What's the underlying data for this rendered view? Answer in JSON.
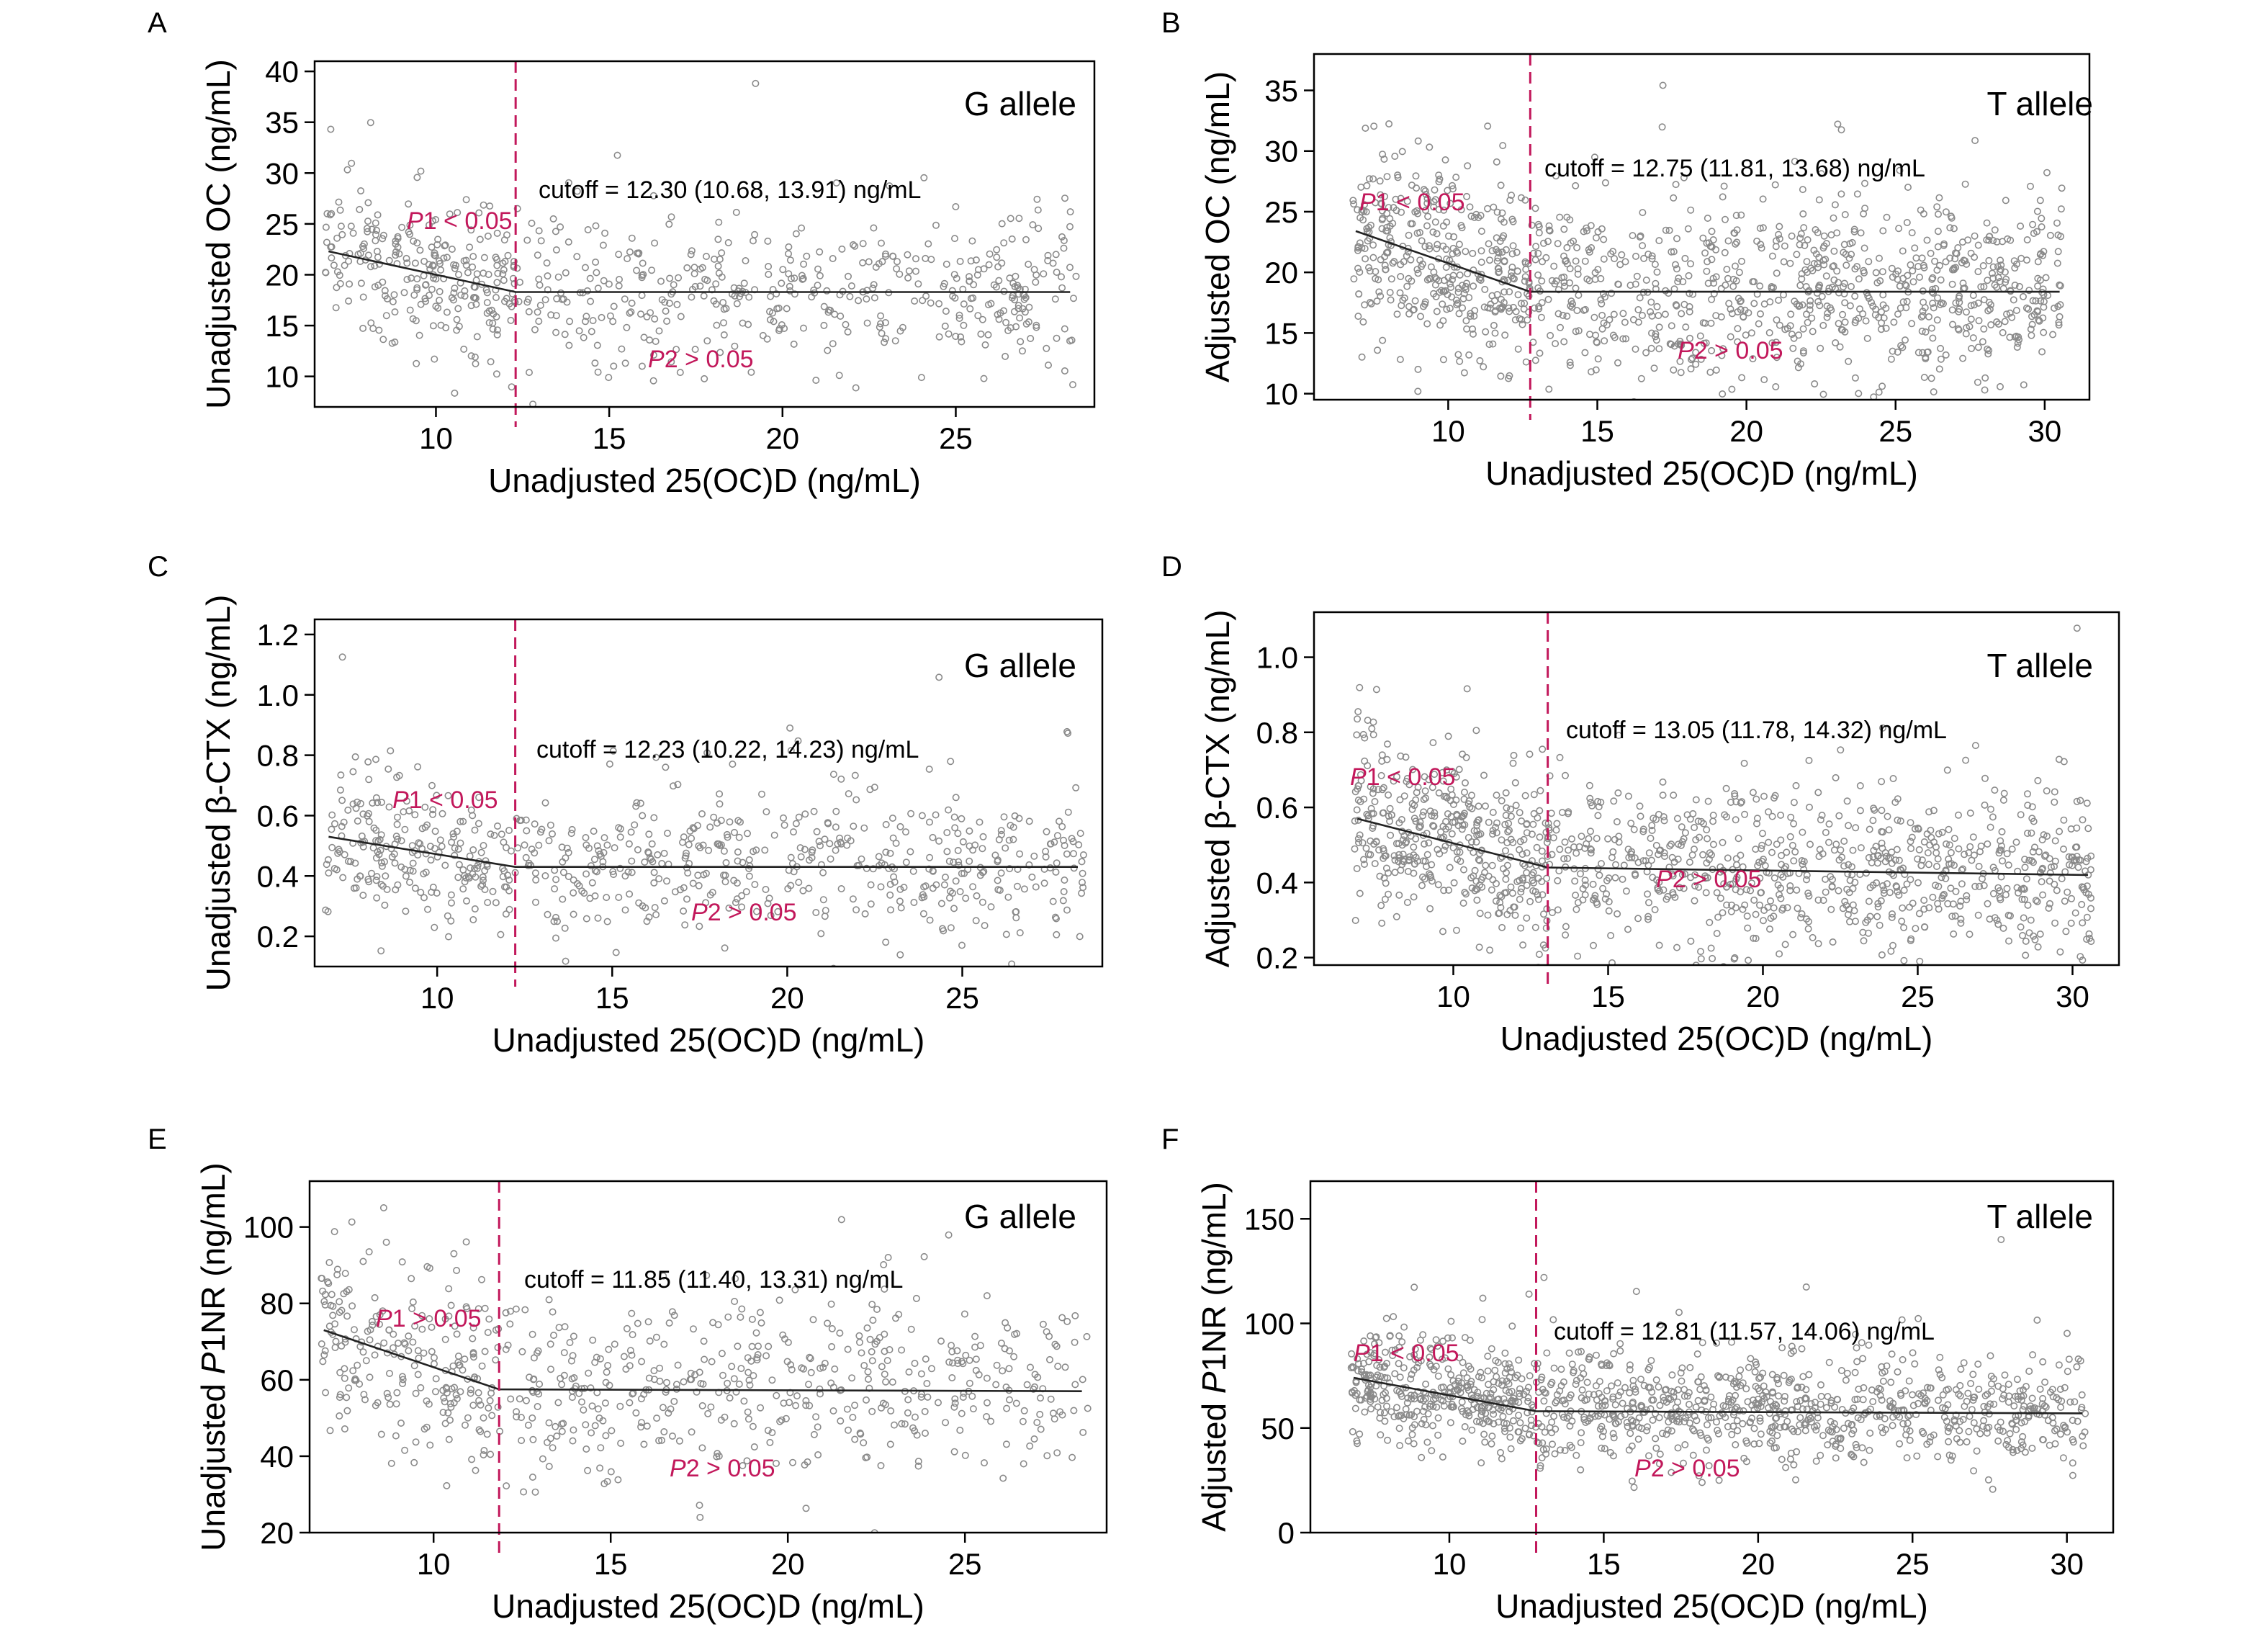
{
  "chart_data": [
    {
      "panel": "A",
      "type": "scatter",
      "xlabel": "Unadjusted 25(OC)D (ng/mL)",
      "ylabel_parts": [
        "Unadjusted OC (ng/mL)"
      ],
      "xlim": [
        6.5,
        29
      ],
      "ylim": [
        7,
        41
      ],
      "xticks": [
        10,
        15,
        20,
        25
      ],
      "yticks": [
        10,
        15,
        20,
        25,
        30,
        35,
        40
      ],
      "allele_label": "G allele",
      "cutoff": 12.3,
      "cutoff_text": "cutoff = 12.30 (10.68, 13.91) ng/mL",
      "p1_text": "1 < 0.05",
      "p2_text": "2 > 0.05",
      "fit": {
        "x": [
          6.9,
          12.3,
          28.3
        ],
        "y": [
          22.3,
          18.3,
          18.3
        ]
      },
      "scatter": {
        "x_range": [
          6.8,
          28.5
        ],
        "center": 18.3,
        "spread": 3.6,
        "n": 700,
        "seed": 11
      }
    },
    {
      "panel": "B",
      "type": "scatter",
      "xlabel": "Unadjusted 25(OC)D (ng/mL)",
      "ylabel_parts": [
        "Adjusted OC (ng/mL)"
      ],
      "xlim": [
        5.5,
        31.5
      ],
      "ylim": [
        9.5,
        38
      ],
      "xticks": [
        10,
        15,
        20,
        25,
        30
      ],
      "yticks": [
        10,
        15,
        20,
        25,
        30,
        35
      ],
      "allele_label": "T allele",
      "cutoff": 12.75,
      "cutoff_text": "cutoff = 12.75 (11.81, 13.68) ng/mL",
      "p1_text": "1 < 0.05",
      "p2_text": "2 > 0.05",
      "fit": {
        "x": [
          6.9,
          12.75,
          30.5
        ],
        "y": [
          23.4,
          18.4,
          18.4
        ]
      },
      "scatter": {
        "x_range": [
          6.8,
          30.6
        ],
        "center": 18.4,
        "spread": 3.6,
        "n": 1200,
        "seed": 23
      }
    },
    {
      "panel": "C",
      "type": "scatter",
      "xlabel": "Unadjusted 25(OC)D (ng/mL)",
      "ylabel_parts": [
        "Unadjusted β-CTX (ng/mL)"
      ],
      "xlim": [
        6.5,
        29
      ],
      "ylim": [
        0.1,
        1.25
      ],
      "xticks": [
        10,
        15,
        20,
        25
      ],
      "yticks": [
        0.2,
        0.4,
        0.6,
        0.8,
        1.0,
        1.2
      ],
      "ytick_labels": [
        "0.2",
        "0.4",
        "0.6",
        "0.8",
        "1.0",
        "1.2"
      ],
      "allele_label": "G allele",
      "cutoff": 12.23,
      "cutoff_text": "cutoff = 12.23 (10.22, 14.23) ng/mL",
      "p1_text": "1 < 0.05",
      "p2_text": "2 > 0.05",
      "fit": {
        "x": [
          6.9,
          12.23,
          28.3
        ],
        "y": [
          0.53,
          0.43,
          0.43
        ]
      },
      "scatter": {
        "x_range": [
          6.8,
          28.5
        ],
        "center": 0.43,
        "spread": 0.12,
        "n": 700,
        "seed": 37
      }
    },
    {
      "panel": "D",
      "type": "scatter",
      "xlabel": "Unadjusted 25(OC)D (ng/mL)",
      "ylabel_parts": [
        "Adjusted β-CTX (ng/mL)"
      ],
      "xlim": [
        5.5,
        31.5
      ],
      "ylim": [
        0.18,
        1.12
      ],
      "xticks": [
        10,
        15,
        20,
        25,
        30
      ],
      "yticks": [
        0.2,
        0.4,
        0.6,
        0.8,
        1.0
      ],
      "ytick_labels": [
        "0.2",
        "0.4",
        "0.6",
        "0.8",
        "1.0"
      ],
      "allele_label": "T allele",
      "cutoff": 13.05,
      "cutoff_text": "cutoff = 13.05 (11.78, 14.32) ng/mL",
      "p1_text": "1 < 0.05",
      "p2_text": "2 > 0.05",
      "fit": {
        "x": [
          6.9,
          13.05,
          30.5
        ],
        "y": [
          0.57,
          0.44,
          0.42
        ]
      },
      "scatter": {
        "x_range": [
          6.8,
          30.6
        ],
        "center": 0.43,
        "spread": 0.11,
        "n": 1200,
        "seed": 53
      }
    },
    {
      "panel": "E",
      "type": "scatter",
      "xlabel": "Unadjusted 25(OC)D (ng/mL)",
      "ylabel_parts": [
        "Unadjusted ",
        "P",
        "1NR (ng/mL)"
      ],
      "xlim": [
        6.5,
        29
      ],
      "ylim": [
        20,
        112
      ],
      "xticks": [
        10,
        15,
        20,
        25
      ],
      "yticks": [
        20,
        40,
        60,
        80,
        100
      ],
      "allele_label": "G allele",
      "cutoff": 11.85,
      "cutoff_text": "cutoff = 11.85 (11.40, 13.31) ng/mL",
      "p1_text": "1 > 0.05",
      "p2_text": "2 > 0.05",
      "fit": {
        "x": [
          6.9,
          11.85,
          28.3
        ],
        "y": [
          73,
          57.5,
          57
        ]
      },
      "scatter": {
        "x_range": [
          6.8,
          28.5
        ],
        "center": 57,
        "spread": 12,
        "n": 700,
        "seed": 71
      }
    },
    {
      "panel": "F",
      "type": "scatter",
      "xlabel": "Unadjusted 25(OC)D (ng/mL)",
      "ylabel_parts": [
        "Adjusted ",
        "P",
        "1NR (ng/mL)"
      ],
      "xlim": [
        5.5,
        31.5
      ],
      "ylim": [
        0,
        168
      ],
      "xticks": [
        10,
        15,
        20,
        25,
        30
      ],
      "yticks": [
        0,
        50,
        100,
        150
      ],
      "allele_label": "T allele",
      "cutoff": 12.81,
      "cutoff_text": "cutoff = 12.81 (11.57, 14.06) ng/mL",
      "p1_text": "1 < 0.05",
      "p2_text": "2 > 0.05",
      "fit": {
        "x": [
          6.9,
          12.81,
          30.5
        ],
        "y": [
          74,
          58,
          57
        ]
      },
      "scatter": {
        "x_range": [
          6.8,
          30.6
        ],
        "center": 57,
        "spread": 13,
        "n": 1200,
        "seed": 89
      }
    }
  ]
}
